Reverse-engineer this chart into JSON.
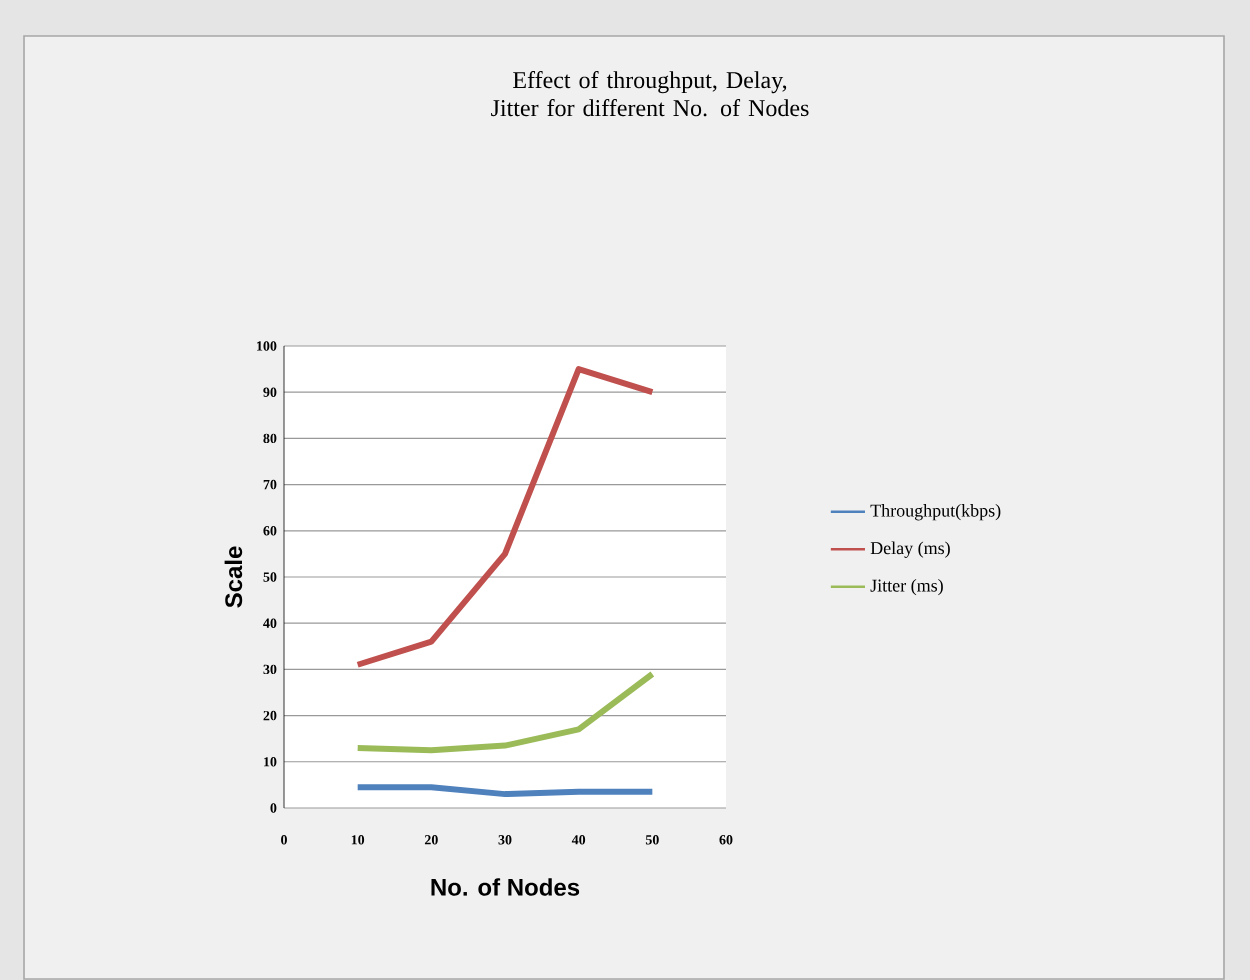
{
  "chart_data": {
    "type": "line",
    "title": "Effect of  throughput, Delay, Jitter for different No. of Nodes",
    "xlabel": "No. of Nodes",
    "ylabel": "Scale",
    "x": [
      10,
      20,
      30,
      40,
      50
    ],
    "series": [
      {
        "name": "Throughput(kbps)",
        "color": "#4f81bd",
        "values": [
          4.5,
          4.5,
          3,
          3.5,
          3.5
        ]
      },
      {
        "name": "Delay (ms)",
        "color": "#c0504d",
        "values": [
          31,
          36,
          55,
          95,
          90
        ]
      },
      {
        "name": "Jitter  (ms)",
        "color": "#9bbb59",
        "values": [
          13,
          12.5,
          13.5,
          17,
          29
        ]
      }
    ],
    "xlim": [
      0,
      60
    ],
    "xticks": [
      0,
      10,
      20,
      30,
      40,
      50,
      60
    ],
    "ylim": [
      0,
      100
    ],
    "yticks": [
      0,
      10,
      20,
      30,
      40,
      50,
      60,
      70,
      80,
      90,
      100
    ],
    "grid": "y",
    "legend": "right",
    "marker": "none",
    "line_style": "solid"
  }
}
